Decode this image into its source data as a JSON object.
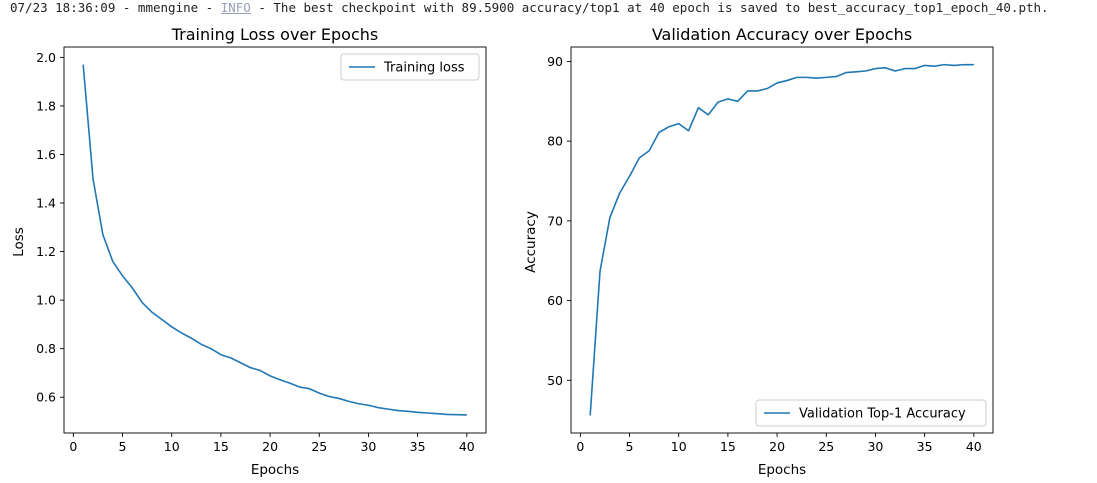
{
  "log": {
    "prefix": "07/23 18:36:09 - mmengine - ",
    "level": "INFO",
    "message": " - The best checkpoint with 89.5900 accuracy/top1 at 40 epoch is saved to best_accuracy_top1_epoch_40.pth."
  },
  "colors": {
    "series": "#1f77b4"
  },
  "chart_data": [
    {
      "type": "line",
      "title": "Training Loss over Epochs",
      "xlabel": "Epochs",
      "ylabel": "Loss",
      "xlim": [
        -0.95,
        41.95
      ],
      "ylim": [
        0.4526,
        2.0428
      ],
      "xticks": [
        0,
        5,
        10,
        15,
        20,
        25,
        30,
        35,
        40
      ],
      "yticks": [
        0.6,
        0.8,
        1.0,
        1.2,
        1.4,
        1.6,
        1.8,
        2.0
      ],
      "ytick_labels": [
        "0.6",
        "0.8",
        "1.0",
        "1.2",
        "1.4",
        "1.6",
        "1.8",
        "2.0"
      ],
      "legend_position": "upper right",
      "grid": false,
      "series": [
        {
          "name": "Training loss",
          "x": [
            1,
            2,
            3,
            4,
            5,
            6,
            7,
            8,
            9,
            10,
            11,
            12,
            13,
            14,
            15,
            16,
            17,
            18,
            19,
            20,
            21,
            22,
            23,
            24,
            25,
            26,
            27,
            28,
            29,
            30,
            31,
            32,
            33,
            34,
            35,
            36,
            37,
            38,
            39,
            40
          ],
          "y": [
            1.97,
            1.5,
            1.27,
            1.16,
            1.1,
            1.05,
            0.99,
            0.95,
            0.92,
            0.89,
            0.865,
            0.843,
            0.818,
            0.8,
            0.775,
            0.762,
            0.742,
            0.722,
            0.71,
            0.688,
            0.672,
            0.658,
            0.642,
            0.635,
            0.617,
            0.603,
            0.595,
            0.583,
            0.573,
            0.567,
            0.557,
            0.551,
            0.545,
            0.542,
            0.538,
            0.535,
            0.532,
            0.529,
            0.528,
            0.527
          ]
        }
      ]
    },
    {
      "type": "line",
      "title": "Validation Accuracy over Epochs",
      "xlabel": "Epochs",
      "ylabel": "Accuracy",
      "xlim": [
        -0.95,
        41.95
      ],
      "ylim": [
        43.39,
        91.81
      ],
      "xticks": [
        0,
        5,
        10,
        15,
        20,
        25,
        30,
        35,
        40
      ],
      "yticks": [
        50,
        60,
        70,
        80,
        90
      ],
      "ytick_labels": [
        "50",
        "60",
        "70",
        "80",
        "90"
      ],
      "legend_position": "lower right",
      "grid": false,
      "series": [
        {
          "name": "Validation Top-1 Accuracy",
          "x": [
            1,
            2,
            3,
            4,
            5,
            6,
            7,
            8,
            9,
            10,
            11,
            12,
            13,
            14,
            15,
            16,
            17,
            18,
            19,
            20,
            21,
            22,
            23,
            24,
            25,
            26,
            27,
            28,
            29,
            30,
            31,
            32,
            33,
            34,
            35,
            36,
            37,
            38,
            39,
            40
          ],
          "y": [
            45.6,
            63.7,
            70.4,
            73.5,
            75.6,
            77.9,
            78.8,
            81.1,
            81.8,
            82.2,
            81.3,
            84.2,
            83.3,
            84.9,
            85.3,
            85.0,
            86.3,
            86.3,
            86.6,
            87.3,
            87.6,
            88.0,
            88.0,
            87.9,
            88.0,
            88.1,
            88.6,
            88.7,
            88.8,
            89.1,
            89.2,
            88.8,
            89.1,
            89.1,
            89.5,
            89.4,
            89.6,
            89.5,
            89.6,
            89.59
          ]
        }
      ]
    }
  ]
}
